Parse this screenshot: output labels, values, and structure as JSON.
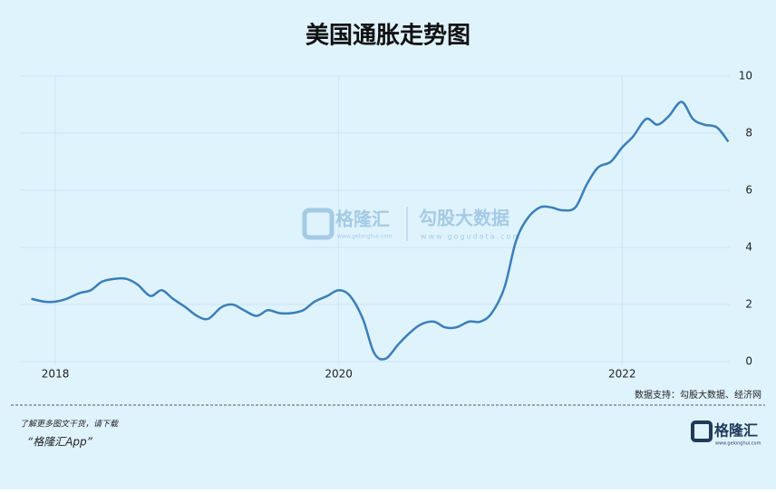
{
  "chart_data": {
    "type": "line",
    "title": "美国通胀走势图",
    "x": [
      2017.83,
      2017.92,
      2018,
      2018.08,
      2018.17,
      2018.25,
      2018.33,
      2018.42,
      2018.5,
      2018.58,
      2018.67,
      2018.75,
      2018.83,
      2018.92,
      2019,
      2019.08,
      2019.17,
      2019.25,
      2019.33,
      2019.42,
      2019.5,
      2019.58,
      2019.67,
      2019.75,
      2019.83,
      2019.92,
      2020,
      2020.08,
      2020.17,
      2020.25,
      2020.33,
      2020.42,
      2020.5,
      2020.58,
      2020.67,
      2020.75,
      2020.83,
      2020.92,
      2021,
      2021.08,
      2021.17,
      2021.25,
      2021.33,
      2021.42,
      2021.5,
      2021.58,
      2021.67,
      2021.75,
      2021.83,
      2021.92,
      2022,
      2022.08,
      2022.17,
      2022.25,
      2022.33,
      2022.42,
      2022.5,
      2022.58,
      2022.67,
      2022.75
    ],
    "values": [
      2.2,
      2.1,
      2.1,
      2.2,
      2.4,
      2.5,
      2.8,
      2.9,
      2.9,
      2.7,
      2.3,
      2.5,
      2.2,
      1.9,
      1.6,
      1.5,
      1.9,
      2.0,
      1.8,
      1.6,
      1.8,
      1.7,
      1.7,
      1.8,
      2.1,
      2.3,
      2.5,
      2.3,
      1.5,
      0.3,
      0.1,
      0.6,
      1.0,
      1.3,
      1.4,
      1.2,
      1.2,
      1.4,
      1.4,
      1.7,
      2.6,
      4.2,
      5.0,
      5.4,
      5.4,
      5.3,
      5.4,
      6.2,
      6.8,
      7.0,
      7.5,
      7.9,
      8.5,
      8.3,
      8.6,
      9.1,
      8.5,
      8.3,
      8.2,
      7.7
    ],
    "color": "#3b7fb9",
    "xlim": [
      2017.75,
      2022.76
    ],
    "ylim": [
      0,
      10
    ],
    "xticks": [
      2018,
      2020,
      2022
    ],
    "yticks": [
      0,
      2,
      4,
      6,
      8,
      10
    ],
    "grid": true,
    "y_axis_side": "right",
    "source": "数据支持：勾股大数据、经济网"
  },
  "watermark": {
    "brand": "格隆汇",
    "brand_url": "www.gelonghui.com",
    "data": "勾股大数据",
    "data_url": "www.gogudata.com"
  },
  "footer": {
    "prompt": "了解更多图文干货，请下载",
    "app": "“格隆汇App”",
    "logo": "格隆汇",
    "logo_url": "www.gelonghui.com"
  }
}
